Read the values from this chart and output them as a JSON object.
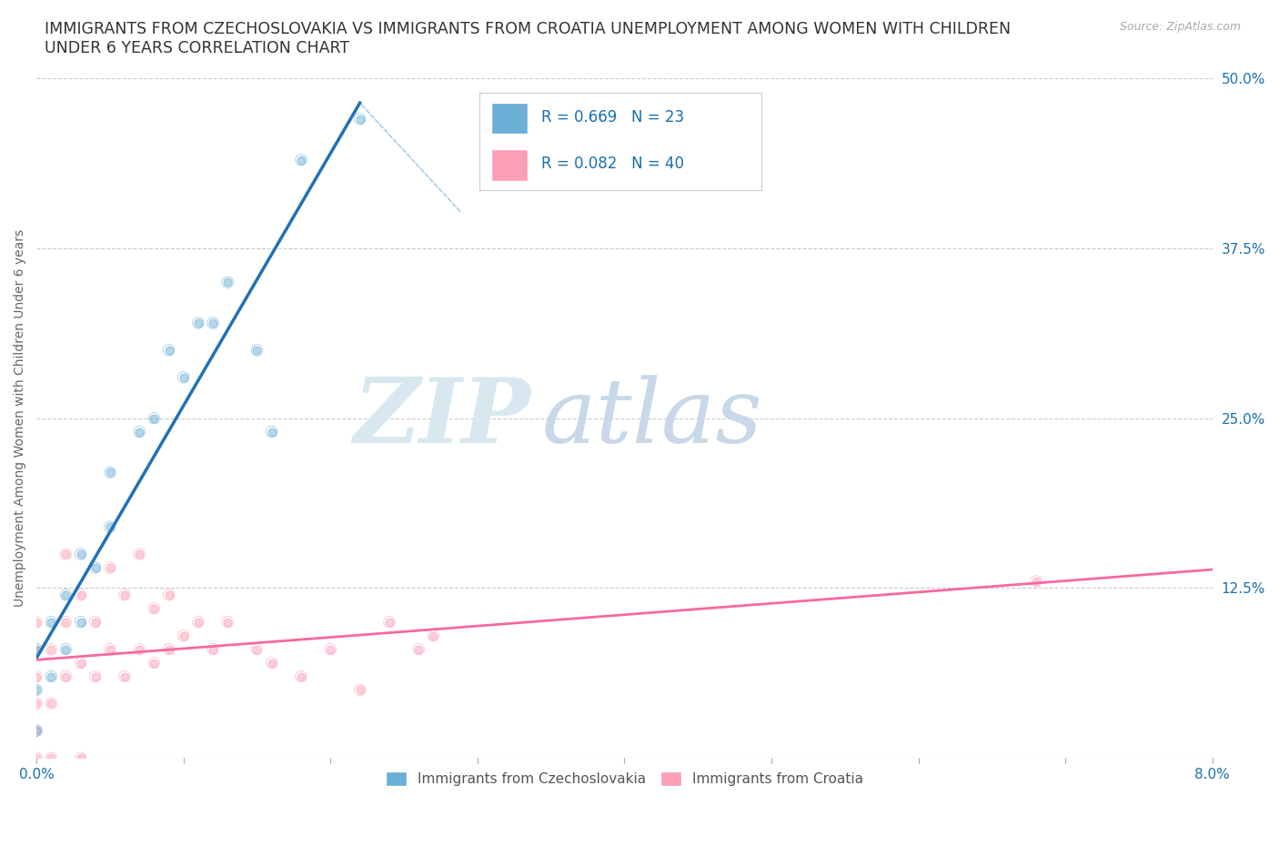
{
  "title": "IMMIGRANTS FROM CZECHOSLOVAKIA VS IMMIGRANTS FROM CROATIA UNEMPLOYMENT AMONG WOMEN WITH CHILDREN\nUNDER 6 YEARS CORRELATION CHART",
  "source_text": "Source: ZipAtlas.com",
  "ylabel": "Unemployment Among Women with Children Under 6 years",
  "xlim": [
    0.0,
    0.08
  ],
  "ylim": [
    0.0,
    0.5
  ],
  "x_tick_positions": [
    0.0,
    0.01,
    0.02,
    0.03,
    0.04,
    0.05,
    0.06,
    0.07,
    0.08
  ],
  "x_tick_labels": [
    "0.0%",
    "",
    "",
    "",
    "",
    "",
    "",
    "",
    "8.0%"
  ],
  "y_ticks_right": [
    0.125,
    0.25,
    0.375,
    0.5
  ],
  "y_tick_labels_right": [
    "12.5%",
    "25.0%",
    "37.5%",
    "50.0%"
  ],
  "color_czech": "#6baed6",
  "color_croatia": "#fa9fb5",
  "line_color_czech": "#2171b5",
  "line_color_croatia": "#f768a1",
  "R_czech": 0.669,
  "N_czech": 23,
  "R_croatia": 0.082,
  "N_croatia": 40,
  "legend_R_color": "#1a6faf",
  "czech_scatter_x": [
    0.0,
    0.0,
    0.0,
    0.001,
    0.001,
    0.002,
    0.002,
    0.003,
    0.003,
    0.004,
    0.005,
    0.005,
    0.007,
    0.008,
    0.009,
    0.01,
    0.011,
    0.012,
    0.013,
    0.015,
    0.016,
    0.018,
    0.022
  ],
  "czech_scatter_y": [
    0.02,
    0.05,
    0.08,
    0.06,
    0.1,
    0.08,
    0.12,
    0.1,
    0.15,
    0.14,
    0.17,
    0.21,
    0.24,
    0.25,
    0.3,
    0.28,
    0.32,
    0.32,
    0.35,
    0.3,
    0.24,
    0.44,
    0.47
  ],
  "croatia_scatter_x": [
    0.0,
    0.0,
    0.0,
    0.0,
    0.0,
    0.0,
    0.001,
    0.001,
    0.001,
    0.002,
    0.002,
    0.002,
    0.003,
    0.003,
    0.003,
    0.004,
    0.004,
    0.005,
    0.005,
    0.006,
    0.006,
    0.007,
    0.007,
    0.008,
    0.008,
    0.009,
    0.009,
    0.01,
    0.011,
    0.012,
    0.013,
    0.015,
    0.016,
    0.018,
    0.02,
    0.022,
    0.024,
    0.026,
    0.027,
    0.068
  ],
  "croatia_scatter_y": [
    0.0,
    0.02,
    0.04,
    0.06,
    0.08,
    0.1,
    0.0,
    0.04,
    0.08,
    0.06,
    0.1,
    0.15,
    0.0,
    0.07,
    0.12,
    0.06,
    0.1,
    0.08,
    0.14,
    0.06,
    0.12,
    0.08,
    0.15,
    0.07,
    0.11,
    0.08,
    0.12,
    0.09,
    0.1,
    0.08,
    0.1,
    0.08,
    0.07,
    0.06,
    0.08,
    0.05,
    0.1,
    0.08,
    0.09,
    0.13
  ],
  "watermark_zip_color": "#d8e8f0",
  "watermark_atlas_color": "#c8d8e8"
}
